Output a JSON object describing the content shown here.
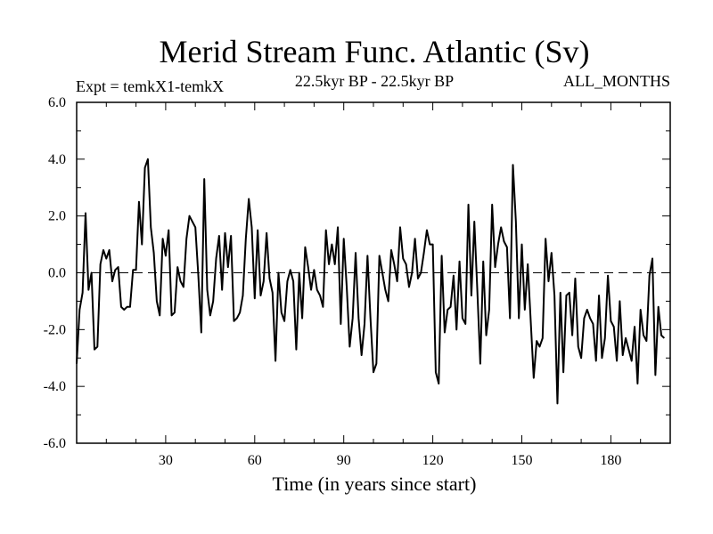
{
  "chart_data": {
    "type": "line",
    "title": "Merid Stream Func. Atlantic (Sv)",
    "subtitle_left": "Expt = temkX1-temkX",
    "subtitle_center": "22.5kyr BP - 22.5kyr BP",
    "subtitle_right": "ALL_MONTHS",
    "xlabel": "Time (in years since start)",
    "ylabel": "",
    "xlim": [
      0,
      200
    ],
    "ylim": [
      -6,
      6
    ],
    "x_ticks": [
      30,
      60,
      90,
      120,
      150,
      180
    ],
    "x_tick_labels": [
      "30",
      "60",
      "90",
      "120",
      "150",
      "180"
    ],
    "y_ticks": [
      -6,
      -4,
      -2,
      0,
      2,
      4,
      6
    ],
    "y_tick_labels": [
      "-6.0",
      "-4.0",
      "-2.0",
      "0.0",
      "2.0",
      "4.0",
      "6.0"
    ],
    "reference_line": {
      "y": 0,
      "style": "dashed"
    },
    "x_start": 0,
    "x_step": 1,
    "series": [
      {
        "name": "temkX1-temkX",
        "values": [
          -3.2,
          -1.3,
          -0.7,
          2.1,
          -0.6,
          0.0,
          -2.7,
          -2.6,
          0.3,
          0.8,
          0.5,
          0.8,
          -0.3,
          0.1,
          0.2,
          -1.2,
          -1.3,
          -1.2,
          -1.2,
          0.1,
          0.1,
          2.5,
          1.0,
          3.7,
          4.0,
          1.6,
          0.7,
          -1.0,
          -1.5,
          1.2,
          0.6,
          1.5,
          -1.5,
          -1.4,
          0.2,
          -0.3,
          -0.5,
          1.2,
          2.0,
          1.8,
          1.6,
          -0.1,
          -2.1,
          3.3,
          -0.6,
          -1.5,
          -1.0,
          0.5,
          1.3,
          -0.6,
          1.4,
          0.2,
          1.3,
          -1.7,
          -1.6,
          -1.4,
          -0.8,
          1.2,
          2.6,
          1.6,
          -0.9,
          1.5,
          -0.8,
          -0.3,
          1.4,
          -0.2,
          -0.7,
          -3.1,
          0.0,
          -1.4,
          -1.7,
          -0.3,
          0.1,
          -0.3,
          -2.7,
          0.0,
          -1.6,
          0.9,
          0.2,
          -0.6,
          0.1,
          -0.6,
          -0.8,
          -1.2,
          1.5,
          0.3,
          1.0,
          0.3,
          1.6,
          -1.8,
          1.2,
          -0.5,
          -2.6,
          -1.6,
          0.7,
          -1.6,
          -2.9,
          -1.8,
          0.6,
          -1.6,
          -3.5,
          -3.2,
          0.6,
          0.0,
          -0.6,
          -1.0,
          0.8,
          0.3,
          -0.3,
          1.6,
          0.5,
          0.3,
          -0.5,
          0.0,
          1.2,
          -0.2,
          0.0,
          0.7,
          1.5,
          1.0,
          1.0,
          -3.5,
          -3.9,
          0.6,
          -2.1,
          -1.3,
          -1.2,
          -0.1,
          -2.0,
          0.4,
          -1.6,
          -1.8,
          2.4,
          -0.8,
          1.8,
          -0.6,
          -3.2,
          0.4,
          -2.2,
          -1.3,
          2.4,
          0.2,
          1.0,
          1.6,
          1.1,
          0.9,
          -1.6,
          3.8,
          1.8,
          -1.6,
          1.0,
          -1.3,
          0.3,
          -1.7,
          -3.7,
          -2.4,
          -2.6,
          -2.3,
          1.2,
          -0.3,
          0.7,
          -0.8,
          -4.6,
          -0.7,
          -3.5,
          -0.8,
          -0.7,
          -2.2,
          -0.2,
          -2.6,
          -3.0,
          -1.6,
          -1.3,
          -1.6,
          -1.8,
          -3.1,
          -0.8,
          -3.0,
          -2.3,
          -0.1,
          -1.7,
          -1.9,
          -3.1,
          -1.0,
          -2.9,
          -2.3,
          -2.7,
          -3.1,
          -1.9,
          -3.9,
          -1.3,
          -2.2,
          -2.4,
          -0.1,
          0.5,
          -3.6,
          -1.2,
          -2.2,
          -2.3
        ]
      }
    ]
  }
}
